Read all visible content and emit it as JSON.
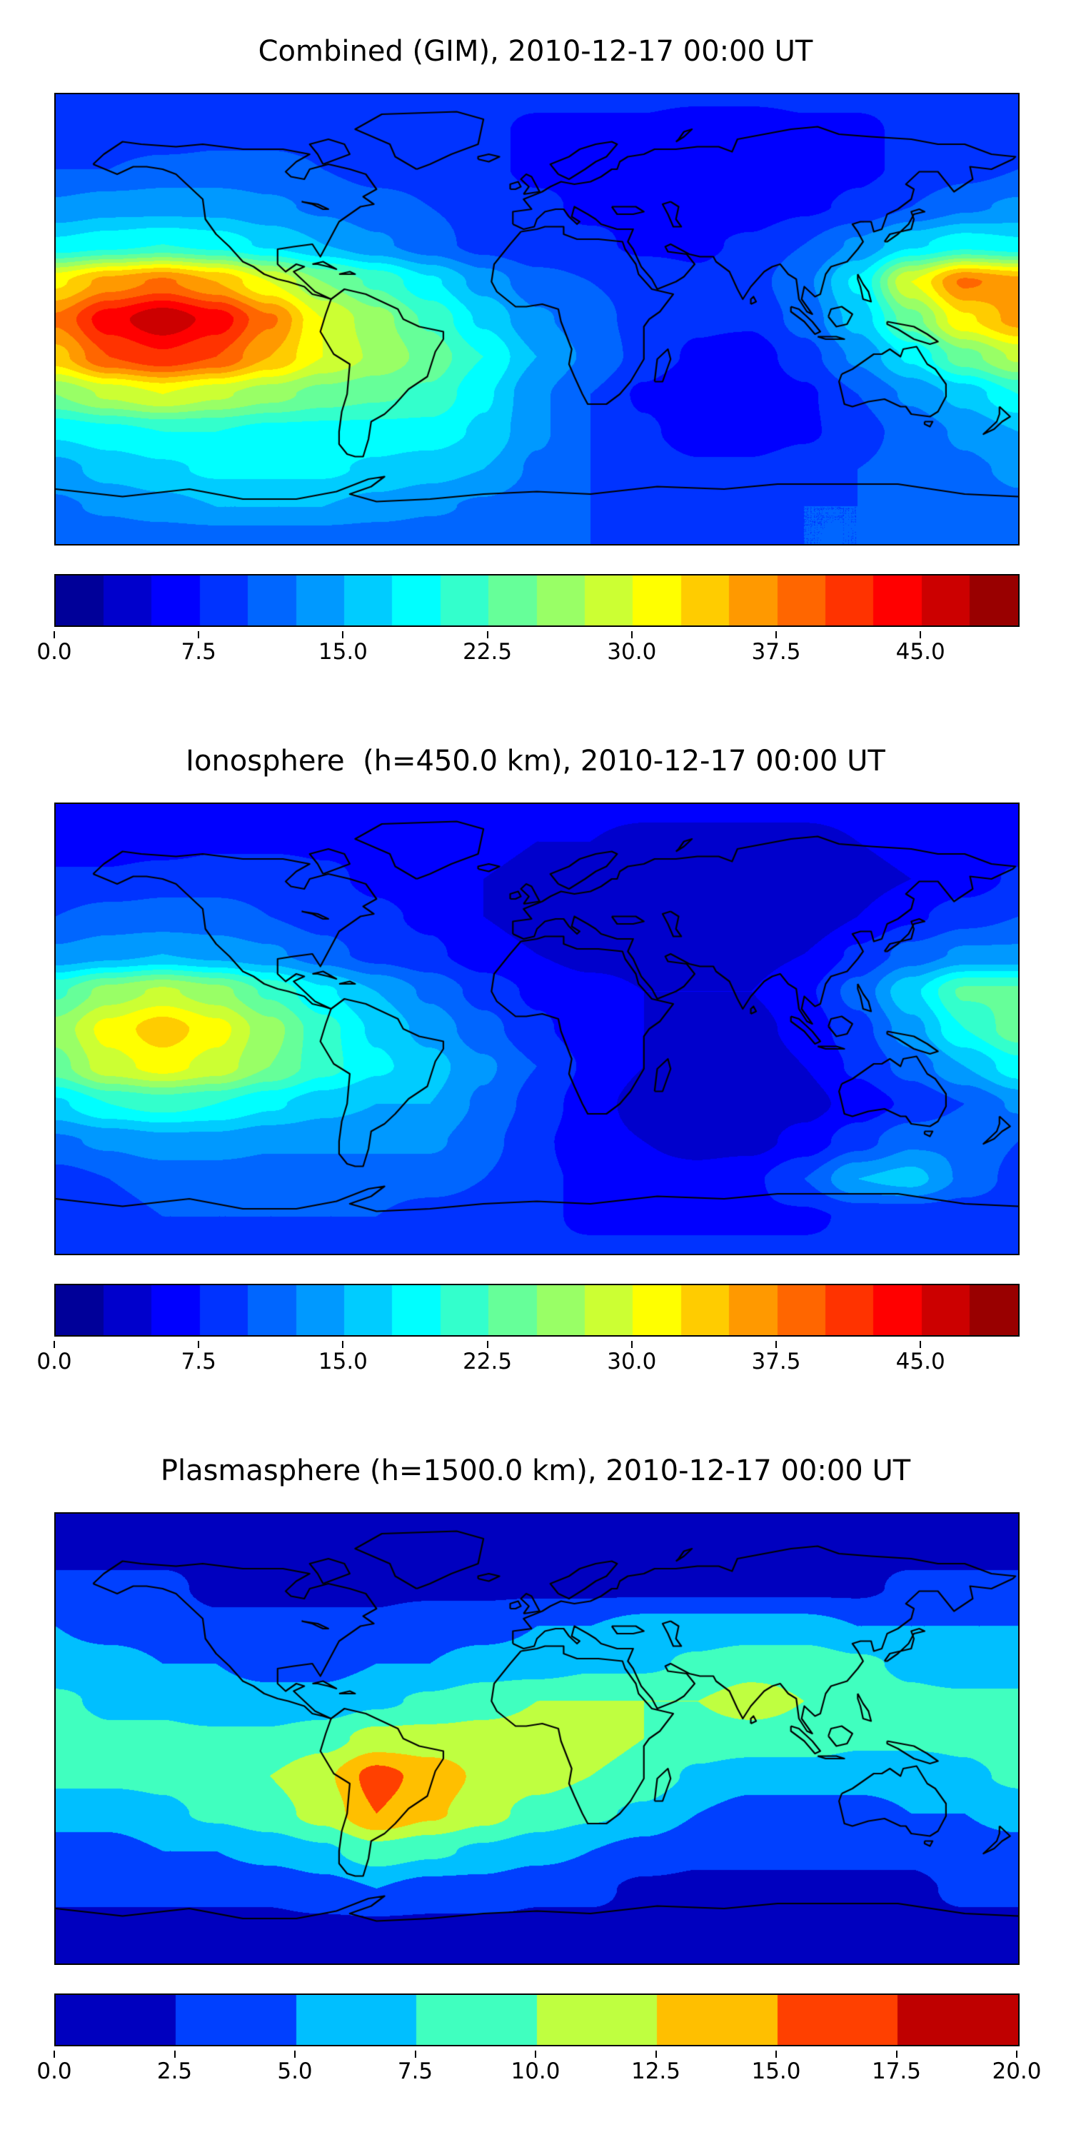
{
  "figure": {
    "background_color": "#ffffff",
    "coastline_color": "#000000"
  },
  "chart_data": [
    {
      "type": "heatmap",
      "title": "Combined (GIM), 2010-12-17 00:00 UT",
      "xlabel": "",
      "ylabel": "",
      "colormap": "jet",
      "projection": "equirectangular",
      "lon_range": [
        -180,
        180
      ],
      "lat_range": [
        -90,
        90
      ],
      "levels_min": 0,
      "levels_max": 50,
      "level_step": 2.5,
      "colorbar_ticks": [
        0.0,
        7.5,
        15.0,
        22.5,
        30.0,
        37.5,
        45.0
      ],
      "colorbar_tick_labels": [
        "0.0",
        "7.5",
        "15.0",
        "22.5",
        "30.0",
        "37.5",
        "45.0"
      ],
      "legend_position": "bottom",
      "lon": [
        -180,
        -160,
        -140,
        -120,
        -100,
        -80,
        -60,
        -40,
        -20,
        0,
        20,
        40,
        60,
        80,
        100,
        120,
        140,
        160,
        180
      ],
      "lat": [
        90,
        75,
        60,
        45,
        30,
        15,
        0,
        -15,
        -30,
        -45,
        -60,
        -75,
        -90
      ],
      "values": [
        [
          8,
          8,
          8,
          8,
          8,
          8,
          8,
          8,
          8,
          8,
          8,
          8,
          8,
          8,
          8,
          8,
          8,
          8,
          8
        ],
        [
          8,
          8,
          8,
          9,
          9,
          9,
          9,
          8,
          8,
          7,
          7,
          7,
          6,
          6,
          7,
          7,
          8,
          8,
          8
        ],
        [
          10,
          10,
          11,
          11,
          11,
          10,
          9,
          9,
          8,
          7,
          7,
          6,
          6,
          6,
          6,
          7,
          8,
          9,
          10
        ],
        [
          13,
          14,
          14,
          14,
          13,
          12,
          11,
          10,
          9,
          8,
          7,
          7,
          6,
          6,
          7,
          8,
          10,
          12,
          13
        ],
        [
          18,
          19,
          20,
          19,
          17,
          15,
          13,
          11,
          9,
          8,
          8,
          7,
          7,
          8,
          10,
          13,
          17,
          19,
          18
        ],
        [
          32,
          36,
          38,
          35,
          30,
          25,
          22,
          18,
          14,
          11,
          10,
          9,
          8,
          9,
          12,
          18,
          30,
          38,
          36
        ],
        [
          38,
          44,
          47,
          44,
          38,
          30,
          26,
          22,
          17,
          13,
          11,
          9,
          8,
          8,
          11,
          16,
          24,
          32,
          36
        ],
        [
          34,
          40,
          42,
          40,
          35,
          30,
          27,
          24,
          20,
          15,
          12,
          9,
          7,
          6,
          9,
          13,
          18,
          24,
          28
        ],
        [
          25,
          28,
          30,
          28,
          26,
          24,
          23,
          22,
          18,
          13,
          10,
          7,
          5,
          5,
          7,
          10,
          13,
          16,
          20
        ],
        [
          18,
          19,
          20,
          20,
          19,
          19,
          19,
          19,
          17,
          13,
          10,
          8,
          6,
          6,
          7,
          9,
          11,
          13,
          15
        ],
        [
          14,
          16,
          17,
          18,
          18,
          18,
          17,
          16,
          15,
          12,
          10,
          9,
          8,
          8,
          9,
          10,
          11,
          12,
          13
        ],
        [
          12,
          13,
          14,
          15,
          15,
          15,
          14,
          13,
          12,
          11,
          10,
          9,
          9,
          9,
          10,
          10,
          11,
          11,
          12
        ],
        [
          10,
          10,
          10,
          10,
          10,
          10,
          10,
          10,
          10,
          10,
          10,
          10,
          10,
          10,
          10,
          10,
          10,
          10,
          10
        ]
      ]
    },
    {
      "type": "heatmap",
      "title": "Ionosphere  (h=450.0 km), 2010-12-17 00:00 UT",
      "xlabel": "",
      "ylabel": "",
      "colormap": "jet",
      "projection": "equirectangular",
      "lon_range": [
        -180,
        180
      ],
      "lat_range": [
        -90,
        90
      ],
      "levels_min": 0,
      "levels_max": 50,
      "level_step": 2.5,
      "colorbar_ticks": [
        0.0,
        7.5,
        15.0,
        22.5,
        30.0,
        37.5,
        45.0
      ],
      "colorbar_tick_labels": [
        "0.0",
        "7.5",
        "15.0",
        "22.5",
        "30.0",
        "37.5",
        "45.0"
      ],
      "legend_position": "bottom",
      "lon": [
        -180,
        -160,
        -140,
        -120,
        -100,
        -80,
        -60,
        -40,
        -20,
        0,
        20,
        40,
        60,
        80,
        100,
        120,
        140,
        160,
        180
      ],
      "lat": [
        90,
        75,
        60,
        45,
        30,
        15,
        0,
        -15,
        -30,
        -45,
        -60,
        -75,
        -90
      ],
      "values": [
        [
          6,
          6,
          6,
          6,
          6,
          6,
          6,
          6,
          6,
          6,
          6,
          6,
          6,
          6,
          6,
          6,
          6,
          6,
          6
        ],
        [
          6,
          6,
          6,
          7,
          7,
          7,
          7,
          6,
          6,
          5,
          5,
          4,
          4,
          4,
          4,
          5,
          6,
          6,
          6
        ],
        [
          8,
          8,
          9,
          9,
          9,
          8,
          7,
          6,
          5,
          4,
          4,
          3,
          3,
          3,
          3,
          4,
          5,
          6,
          8
        ],
        [
          10,
          11,
          11,
          11,
          10,
          9,
          8,
          7,
          5,
          4,
          4,
          3,
          3,
          3,
          3,
          5,
          7,
          9,
          10
        ],
        [
          13,
          14,
          15,
          14,
          13,
          11,
          9,
          8,
          6,
          5,
          4,
          4,
          3,
          4,
          5,
          8,
          11,
          13,
          13
        ],
        [
          22,
          26,
          28,
          26,
          22,
          18,
          15,
          12,
          9,
          7,
          6,
          5,
          5,
          5,
          7,
          11,
          17,
          23,
          23
        ],
        [
          26,
          31,
          34,
          31,
          26,
          21,
          17,
          14,
          11,
          8,
          6,
          5,
          4,
          4,
          6,
          9,
          14,
          20,
          24
        ],
        [
          24,
          29,
          31,
          29,
          25,
          21,
          18,
          16,
          13,
          10,
          7,
          5,
          4,
          3,
          5,
          8,
          11,
          15,
          19
        ],
        [
          17,
          20,
          21,
          20,
          18,
          16,
          15,
          15,
          12,
          9,
          6,
          4,
          3,
          3,
          4,
          6,
          8,
          10,
          13
        ],
        [
          12,
          13,
          14,
          14,
          13,
          13,
          13,
          13,
          11,
          8,
          6,
          5,
          4,
          4,
          6,
          9,
          12,
          12,
          10
        ],
        [
          9,
          10,
          11,
          11,
          11,
          11,
          11,
          11,
          10,
          8,
          7,
          6,
          6,
          7,
          10,
          15,
          16,
          12,
          9
        ],
        [
          8,
          9,
          10,
          10,
          10,
          10,
          10,
          9,
          9,
          8,
          7,
          7,
          7,
          7,
          7,
          8,
          8,
          8,
          8
        ],
        [
          8,
          8,
          8,
          8,
          8,
          8,
          8,
          8,
          8,
          8,
          8,
          8,
          8,
          8,
          8,
          8,
          8,
          8,
          8
        ]
      ]
    },
    {
      "type": "heatmap",
      "title": "Plasmasphere (h=1500.0 km), 2010-12-17 00:00 UT",
      "xlabel": "",
      "ylabel": "",
      "colormap": "jet",
      "projection": "equirectangular",
      "lon_range": [
        -180,
        180
      ],
      "lat_range": [
        -90,
        90
      ],
      "levels_min": 0,
      "levels_max": 20,
      "level_step": 2.5,
      "colorbar_ticks": [
        0.0,
        2.5,
        5.0,
        7.5,
        10.0,
        12.5,
        15.0,
        17.5,
        20.0
      ],
      "colorbar_tick_labels": [
        "0.0",
        "2.5",
        "5.0",
        "7.5",
        "10.0",
        "12.5",
        "15.0",
        "17.5",
        "20.0"
      ],
      "legend_position": "bottom",
      "lon": [
        -180,
        -160,
        -140,
        -120,
        -100,
        -80,
        -60,
        -40,
        -20,
        0,
        20,
        40,
        60,
        80,
        100,
        120,
        140,
        160,
        180
      ],
      "lat": [
        90,
        75,
        60,
        45,
        30,
        15,
        0,
        -15,
        -30,
        -45,
        -60,
        -75,
        -90
      ],
      "values": [
        [
          2,
          2,
          2,
          2,
          2,
          2,
          2,
          2,
          2,
          2,
          2,
          2,
          2,
          2,
          2,
          2,
          2,
          2,
          2
        ],
        [
          2,
          2,
          2,
          2,
          2,
          2,
          2,
          2,
          2,
          2,
          2,
          2,
          2,
          2,
          2,
          2,
          2,
          2,
          2
        ],
        [
          3,
          3,
          3,
          2,
          2,
          2,
          2,
          2,
          2,
          2,
          2,
          2,
          2,
          2,
          2,
          2,
          3,
          3,
          3
        ],
        [
          5,
          4,
          4,
          3,
          3,
          3,
          3,
          4,
          4,
          5,
          5,
          6,
          6,
          6,
          6,
          5,
          5,
          5,
          5
        ],
        [
          6,
          6,
          5,
          5,
          4,
          4,
          5,
          5,
          6,
          6,
          7,
          7,
          8,
          9,
          9,
          8,
          7,
          6,
          6
        ],
        [
          8,
          7,
          7,
          6,
          6,
          6,
          7,
          8,
          9,
          10,
          10,
          10,
          10,
          11,
          10,
          9,
          8,
          8,
          8
        ],
        [
          9,
          8,
          8,
          8,
          8,
          9,
          11,
          11,
          11,
          11,
          11,
          10,
          9,
          9,
          9,
          8,
          8,
          8,
          9
        ],
        [
          8,
          8,
          8,
          9,
          10,
          12,
          16,
          14,
          12,
          11,
          10,
          9,
          7,
          6,
          6,
          6,
          6,
          7,
          8
        ],
        [
          6,
          6,
          7,
          8,
          9,
          11,
          15,
          13,
          11,
          9,
          8,
          7,
          5,
          4,
          4,
          4,
          5,
          5,
          6
        ],
        [
          4,
          4,
          5,
          5,
          6,
          7,
          9,
          8,
          7,
          6,
          5,
          4,
          3,
          3,
          3,
          3,
          3,
          4,
          4
        ],
        [
          3,
          3,
          3,
          3,
          3,
          4,
          5,
          4,
          4,
          3,
          3,
          2,
          2,
          2,
          2,
          2,
          2,
          3,
          3
        ],
        [
          2,
          2,
          2,
          2,
          2,
          2,
          2,
          2,
          2,
          2,
          2,
          2,
          2,
          2,
          2,
          2,
          2,
          2,
          2
        ],
        [
          2,
          2,
          2,
          2,
          2,
          2,
          2,
          2,
          2,
          2,
          2,
          2,
          2,
          2,
          2,
          2,
          2,
          2,
          2
        ]
      ]
    }
  ]
}
